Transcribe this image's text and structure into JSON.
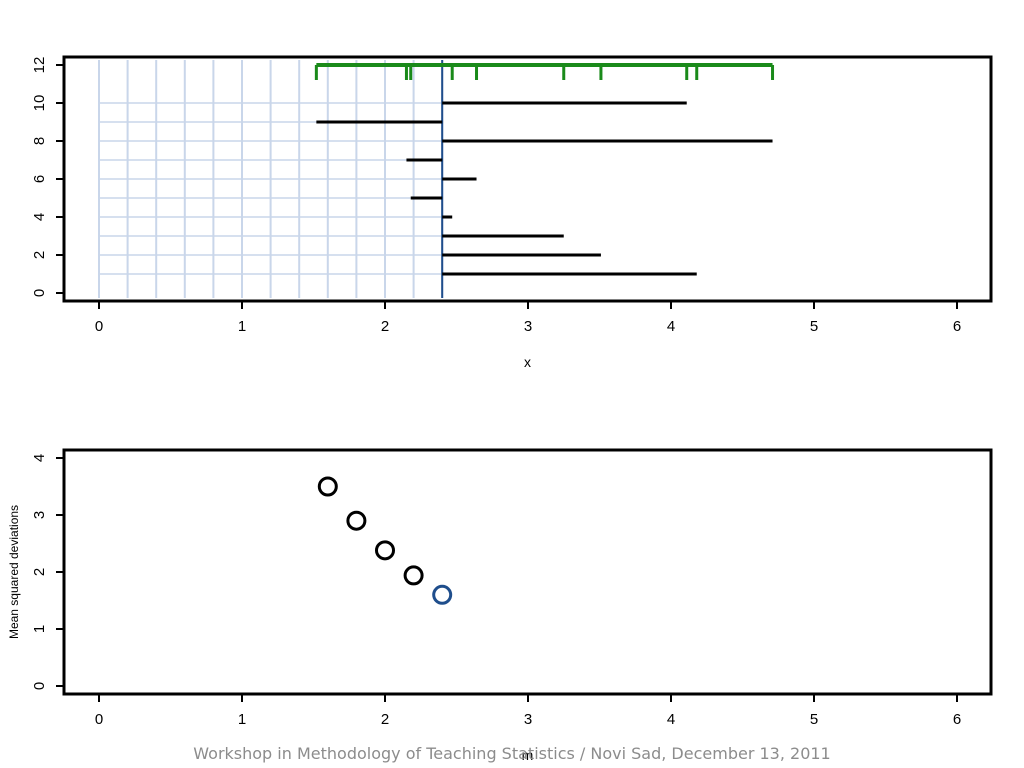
{
  "footer": "Workshop in Methodology of Teaching Statistics / Novi Sad, December 13, 2011",
  "colors": {
    "axes": "#000000",
    "rug": "#1a8a1a",
    "highlight": "#1f4e8c",
    "grid_light": "#c9d6ea",
    "segments": "#000000"
  },
  "chart_data": [
    {
      "type": "scatter",
      "title": "",
      "xlabel": "x",
      "ylabel": "",
      "xlim": [
        0,
        6
      ],
      "ylim": [
        0,
        12
      ],
      "x_ticks": [
        0,
        1,
        2,
        3,
        4,
        5,
        6
      ],
      "y_ticks": [
        0,
        2,
        4,
        6,
        8,
        10,
        12
      ],
      "reference_m": 2.4,
      "candidate_lines_x": [
        0,
        0.2,
        0.4,
        0.6,
        0.8,
        1.0,
        1.2,
        1.4,
        1.6,
        1.8,
        2.0,
        2.2,
        2.4
      ],
      "rug_y": 12,
      "rug_x": [
        1.52,
        2.15,
        2.18,
        2.47,
        2.64,
        3.25,
        3.51,
        4.11,
        4.18,
        4.71
      ],
      "deviations": [
        {
          "i": 1,
          "x": 4.18
        },
        {
          "i": 2,
          "x": 3.51
        },
        {
          "i": 3,
          "x": 3.25
        },
        {
          "i": 4,
          "x": 2.47
        },
        {
          "i": 5,
          "x": 2.18
        },
        {
          "i": 6,
          "x": 2.64
        },
        {
          "i": 7,
          "x": 2.15
        },
        {
          "i": 8,
          "x": 4.71
        },
        {
          "i": 9,
          "x": 1.52
        },
        {
          "i": 10,
          "x": 4.11
        }
      ]
    },
    {
      "type": "scatter",
      "title": "",
      "xlabel": "m",
      "ylabel": "Mean squared deviations",
      "xlim": [
        0,
        6
      ],
      "ylim": [
        0,
        4
      ],
      "x_ticks": [
        0,
        1,
        2,
        3,
        4,
        5,
        6
      ],
      "y_ticks": [
        0,
        1,
        2,
        3,
        4
      ],
      "points": [
        {
          "x": 1.6,
          "y": 3.5,
          "highlight": false
        },
        {
          "x": 1.8,
          "y": 2.9,
          "highlight": false
        },
        {
          "x": 2.0,
          "y": 2.38,
          "highlight": false
        },
        {
          "x": 2.2,
          "y": 1.94,
          "highlight": false
        },
        {
          "x": 2.4,
          "y": 1.6,
          "highlight": true
        }
      ]
    }
  ]
}
